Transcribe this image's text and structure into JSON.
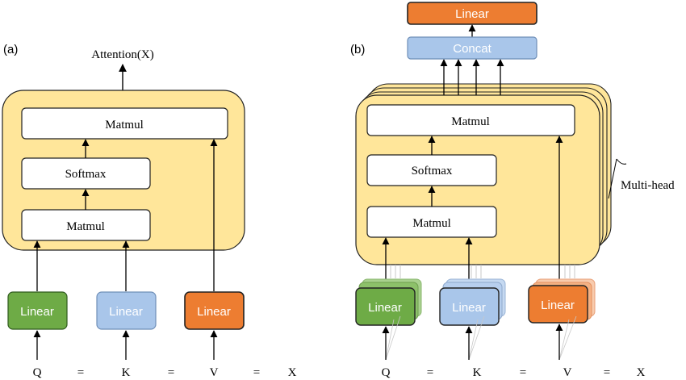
{
  "panel_a": {
    "label": "(a)",
    "output_label": "Attention(X)",
    "matmul_top": "Matmul",
    "softmax": "Softmax",
    "matmul_bottom": "Matmul",
    "linear_q": "Linear",
    "linear_k": "Linear",
    "linear_v": "Linear",
    "eq": {
      "q": "Q",
      "eq1": "=",
      "k": "K",
      "eq2": "=",
      "v": "V",
      "eq3": "=",
      "x": "X"
    }
  },
  "panel_b": {
    "label": "(b)",
    "linear_out": "Linear",
    "concat": "Concat",
    "matmul_top": "Matmul",
    "softmax": "Softmax",
    "matmul_bottom": "Matmul",
    "multi_head": "Multi-head",
    "linear_q": "Linear",
    "linear_k": "Linear",
    "linear_v": "Linear",
    "eq": {
      "q": "Q",
      "eq1": "=",
      "k": "K",
      "eq2": "=",
      "v": "V",
      "eq3": "=",
      "x": "X"
    }
  },
  "colors": {
    "panel_fill": "#FFE69A",
    "panel_stroke": "#222222",
    "green": "#6EAB46",
    "green_back": "#A9D18E",
    "blue": "#A9C6EA",
    "blue_back": "#C5D9F1",
    "orange": "#ED7D31",
    "orange_back": "#F4B183"
  }
}
